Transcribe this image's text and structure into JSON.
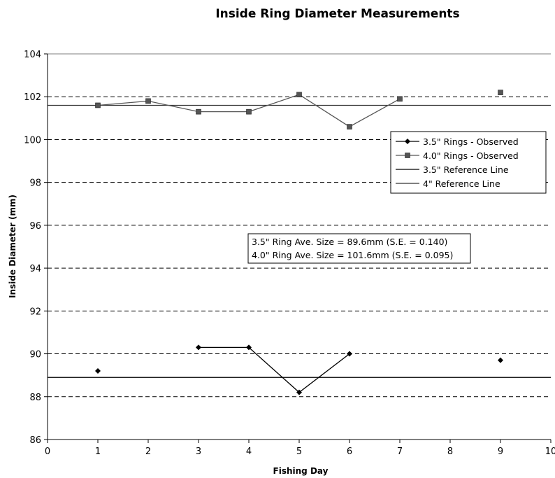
{
  "chart_data": {
    "type": "line",
    "title": "Inside Ring Diameter Measurements",
    "xlabel": "Fishing Day",
    "ylabel": "Inside Diameter (mm)",
    "xlim": [
      0,
      10
    ],
    "ylim": [
      86,
      104
    ],
    "x_ticks": [
      0,
      1,
      2,
      3,
      4,
      5,
      6,
      7,
      8,
      9,
      10
    ],
    "y_ticks": [
      86,
      88,
      90,
      92,
      94,
      96,
      98,
      100,
      102,
      104
    ],
    "gridlines": "dashed horizontal",
    "legend_position": "right",
    "series": [
      {
        "name": "3.5\" Rings - Observed",
        "marker": "diamond",
        "color": "#000000",
        "x": [
          1,
          3,
          4,
          5,
          6,
          9
        ],
        "y": [
          89.2,
          90.3,
          90.3,
          88.2,
          90.0,
          89.7
        ],
        "segments": [
          [
            1,
            2,
            3,
            4
          ]
        ]
      },
      {
        "name": "4.0\" Rings - Observed",
        "marker": "square",
        "color": "#555555",
        "x": [
          1,
          2,
          3,
          4,
          5,
          6,
          7,
          9
        ],
        "y": [
          101.6,
          101.8,
          101.3,
          101.3,
          102.1,
          100.6,
          101.9,
          102.2
        ],
        "segments": [
          [
            0,
            1,
            2,
            3,
            4,
            5,
            6
          ]
        ]
      },
      {
        "name": "3.5\" Reference Line",
        "type": "reference",
        "style": "solid",
        "color": "#000000",
        "y": 88.9
      },
      {
        "name": "4\" Reference Line",
        "type": "reference",
        "style": "solid-gray",
        "color": "#333333",
        "y": 101.6
      }
    ],
    "annotations": [
      "3.5\" Ring Ave. Size = 89.6mm (S.E. = 0.140)",
      "4.0\" Ring Ave. Size = 101.6mm (S.E. = 0.095)"
    ]
  }
}
